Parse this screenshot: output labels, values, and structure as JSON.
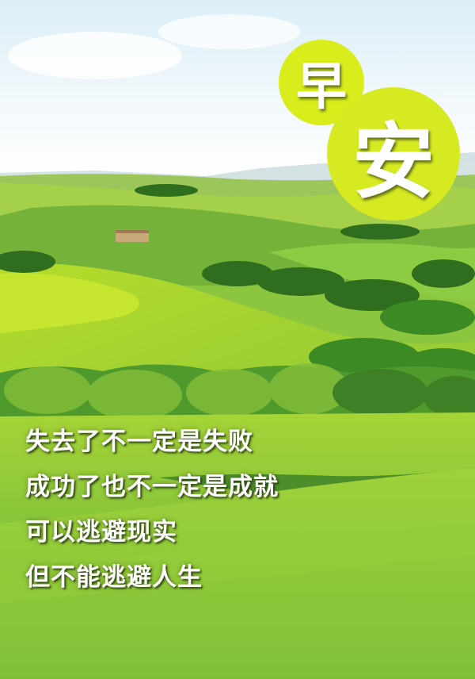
{
  "greeting": {
    "char1": "早",
    "char2": "安"
  },
  "poem": {
    "lines": [
      "失去了不一定是失败",
      "成功了也不一定是成就",
      "可以逃避现实",
      "但不能逃避人生"
    ]
  },
  "colors": {
    "badge": "#d8eb1f",
    "text": "#ffffff"
  }
}
